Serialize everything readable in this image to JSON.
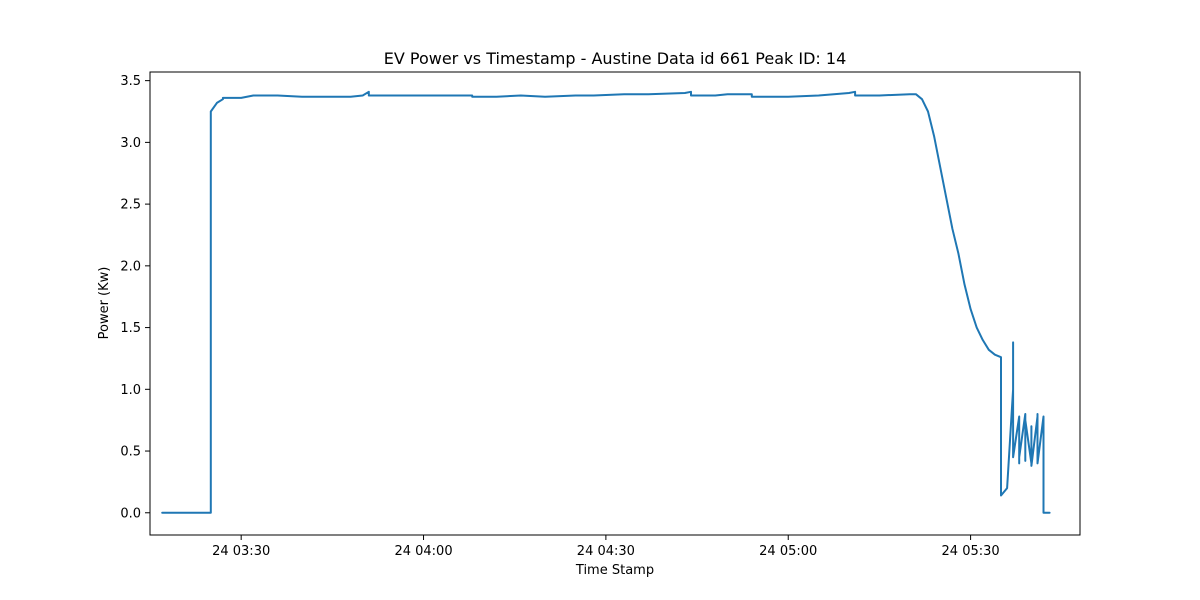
{
  "chart_data": {
    "type": "line",
    "title": "EV Power vs Timestamp - Austine Data id 661 Peak ID: 14",
    "xlabel": "Time Stamp",
    "ylabel": "Power (Kw)",
    "x_unit": "clock time (day 24)",
    "xlim": [
      "03:15",
      "05:48"
    ],
    "ylim": [
      -0.18,
      3.57
    ],
    "xticks": [
      {
        "value": "03:30",
        "label": "24 03:30"
      },
      {
        "value": "04:00",
        "label": "24 04:00"
      },
      {
        "value": "04:30",
        "label": "24 04:30"
      },
      {
        "value": "05:00",
        "label": "24 05:00"
      },
      {
        "value": "05:30",
        "label": "24 05:30"
      }
    ],
    "yticks": [
      {
        "value": 0.0,
        "label": "0.0"
      },
      {
        "value": 0.5,
        "label": "0.5"
      },
      {
        "value": 1.0,
        "label": "1.0"
      },
      {
        "value": 1.5,
        "label": "1.5"
      },
      {
        "value": 2.0,
        "label": "2.0"
      },
      {
        "value": 2.5,
        "label": "2.5"
      },
      {
        "value": 3.0,
        "label": "3.0"
      },
      {
        "value": 3.5,
        "label": "3.5"
      }
    ],
    "grid": false,
    "legend": "none",
    "series": [
      {
        "color": "#1f77b4",
        "points": [
          [
            "03:17",
            0.0
          ],
          [
            "03:25",
            0.0
          ],
          [
            "03:25",
            0.18
          ],
          [
            "03:25",
            0.0
          ],
          [
            "03:25",
            3.0
          ],
          [
            "03:25",
            3.25
          ],
          [
            "03:26",
            3.32
          ],
          [
            "03:27",
            3.35
          ],
          [
            "03:27",
            3.36
          ],
          [
            "03:30",
            3.36
          ],
          [
            "03:32",
            3.38
          ],
          [
            "03:36",
            3.38
          ],
          [
            "03:40",
            3.37
          ],
          [
            "03:44",
            3.37
          ],
          [
            "03:48",
            3.37
          ],
          [
            "03:50",
            3.38
          ],
          [
            "03:51",
            3.41
          ],
          [
            "03:51",
            3.38
          ],
          [
            "03:55",
            3.38
          ],
          [
            "04:00",
            3.38
          ],
          [
            "04:05",
            3.38
          ],
          [
            "04:08",
            3.38
          ],
          [
            "04:08",
            3.37
          ],
          [
            "04:12",
            3.37
          ],
          [
            "04:16",
            3.38
          ],
          [
            "04:20",
            3.37
          ],
          [
            "04:25",
            3.38
          ],
          [
            "04:28",
            3.38
          ],
          [
            "04:33",
            3.39
          ],
          [
            "04:37",
            3.39
          ],
          [
            "04:43",
            3.4
          ],
          [
            "04:44",
            3.41
          ],
          [
            "04:44",
            3.38
          ],
          [
            "04:48",
            3.38
          ],
          [
            "04:50",
            3.39
          ],
          [
            "04:54",
            3.39
          ],
          [
            "04:54",
            3.37
          ],
          [
            "05:00",
            3.37
          ],
          [
            "05:05",
            3.38
          ],
          [
            "05:10",
            3.4
          ],
          [
            "05:11",
            3.41
          ],
          [
            "05:11",
            3.38
          ],
          [
            "05:15",
            3.38
          ],
          [
            "05:20",
            3.39
          ],
          [
            "05:21",
            3.39
          ],
          [
            "05:22",
            3.35
          ],
          [
            "05:23",
            3.25
          ],
          [
            "05:24",
            3.05
          ],
          [
            "05:25",
            2.8
          ],
          [
            "05:26",
            2.55
          ],
          [
            "05:27",
            2.3
          ],
          [
            "05:28",
            2.1
          ],
          [
            "05:29",
            1.85
          ],
          [
            "05:30",
            1.65
          ],
          [
            "05:31",
            1.5
          ],
          [
            "05:32",
            1.4
          ],
          [
            "05:33",
            1.32
          ],
          [
            "05:34",
            1.28
          ],
          [
            "05:35",
            1.26
          ],
          [
            "05:35",
            0.22
          ],
          [
            "05:35",
            0.18
          ],
          [
            "05:35",
            0.14
          ],
          [
            "05:36",
            0.2
          ],
          [
            "05:36",
            0.2
          ],
          [
            "05:37",
            1.0
          ],
          [
            "05:37",
            1.38
          ],
          [
            "05:37",
            0.45
          ],
          [
            "05:38",
            0.78
          ],
          [
            "05:38",
            0.4
          ],
          [
            "05:38",
            0.72
          ],
          [
            "05:38",
            0.45
          ],
          [
            "05:39",
            0.8
          ],
          [
            "05:39",
            0.42
          ],
          [
            "05:39",
            0.75
          ],
          [
            "05:40",
            0.4
          ],
          [
            "05:40",
            0.7
          ],
          [
            "05:40",
            0.38
          ],
          [
            "05:41",
            0.78
          ],
          [
            "05:41",
            0.45
          ],
          [
            "05:41",
            0.8
          ],
          [
            "05:41",
            0.4
          ],
          [
            "05:42",
            0.78
          ],
          [
            "05:42",
            0.0
          ],
          [
            "05:43",
            0.0
          ]
        ]
      }
    ]
  }
}
